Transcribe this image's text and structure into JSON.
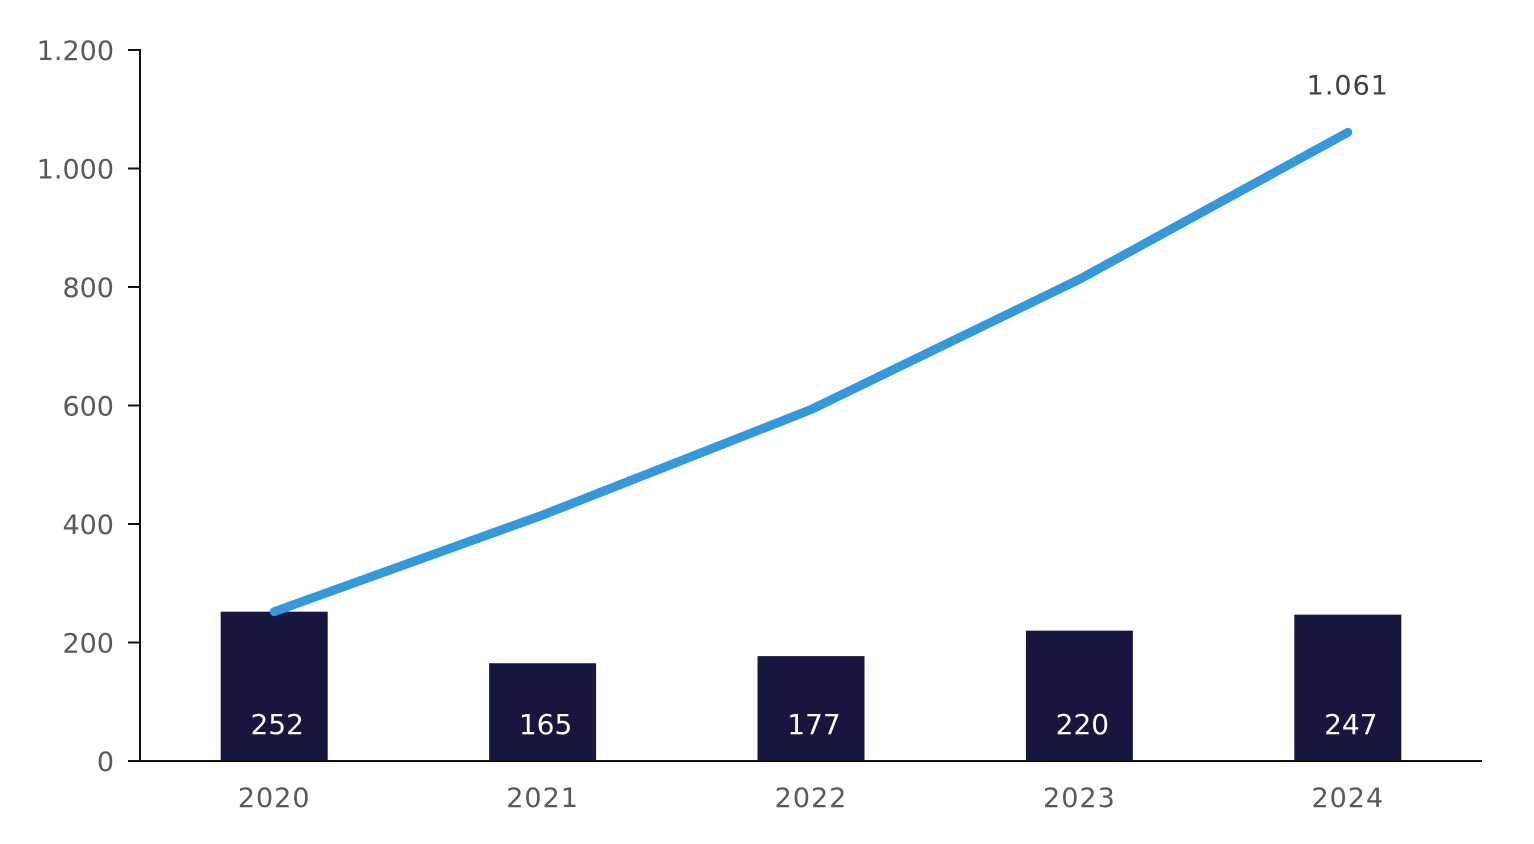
{
  "chart_data": {
    "type": "bar",
    "categories": [
      "2020",
      "2021",
      "2022",
      "2023",
      "2024"
    ],
    "series": [
      {
        "type": "bar",
        "values": [
          252,
          165,
          177,
          220,
          247
        ],
        "labels": [
          "252",
          "165",
          "177",
          "220",
          "247"
        ],
        "color": "#16163F"
      },
      {
        "type": "line",
        "values": [
          252,
          415,
          593,
          813,
          1061
        ],
        "end_label": "1.061",
        "color": "#3498DB"
      }
    ],
    "ylim": [
      0,
      1200
    ],
    "yticks": [
      0,
      200,
      400,
      600,
      800,
      1000,
      1200
    ],
    "ytick_labels": [
      "0",
      "200",
      "400",
      "600",
      "800",
      "1.000",
      "1.200"
    ],
    "title": "",
    "xlabel": "",
    "ylabel": "",
    "grid": false,
    "legend": "none"
  }
}
